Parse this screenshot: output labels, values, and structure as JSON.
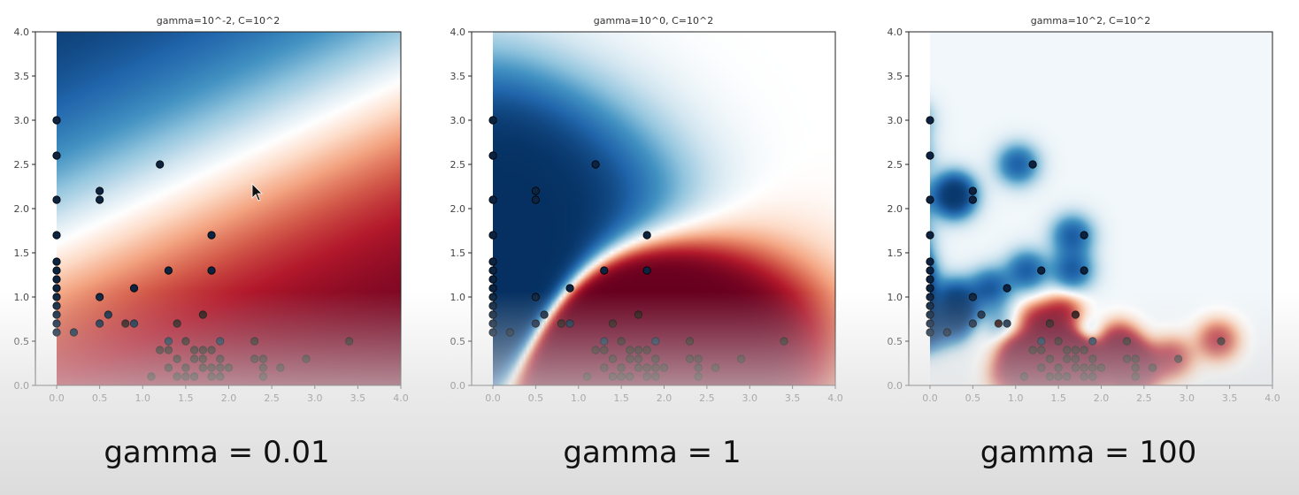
{
  "chart_data": [
    {
      "type": "scatter",
      "title": "gamma=10^-2, C=10^2",
      "gamma": 0.01,
      "C": 100,
      "xlim": [
        0,
        4
      ],
      "ylim": [
        0,
        4
      ],
      "xticks": [
        "0.0",
        "0.5",
        "1.0",
        "1.5",
        "2.0",
        "2.5",
        "3.0",
        "3.5",
        "4.0"
      ],
      "yticks": [
        "0.0",
        "0.5",
        "1.0",
        "1.5",
        "2.0",
        "2.5",
        "3.0",
        "3.5",
        "4.0"
      ],
      "background": "decision-function heatmap (RdBu)",
      "points_label": "shared"
    },
    {
      "type": "scatter",
      "title": "gamma=10^0, C=10^2",
      "gamma": 1,
      "C": 100,
      "xlim": [
        0,
        4
      ],
      "ylim": [
        0,
        4
      ],
      "xticks": [
        "0.0",
        "0.5",
        "1.0",
        "1.5",
        "2.0",
        "2.5",
        "3.0",
        "3.5",
        "4.0"
      ],
      "yticks": [
        "0.0",
        "0.5",
        "1.0",
        "1.5",
        "2.0",
        "2.5",
        "3.0",
        "3.5",
        "4.0"
      ],
      "background": "decision-function heatmap (RdBu)",
      "points_label": "shared"
    },
    {
      "type": "scatter",
      "title": "gamma=10^2, C=10^2",
      "gamma": 100,
      "C": 100,
      "xlim": [
        0,
        4
      ],
      "ylim": [
        0,
        4
      ],
      "xticks": [
        "0.0",
        "0.5",
        "1.0",
        "1.5",
        "2.0",
        "2.5",
        "3.0",
        "3.5",
        "4.0"
      ],
      "yticks": [
        "0.0",
        "0.5",
        "1.0",
        "1.5",
        "2.0",
        "2.5",
        "3.0",
        "3.5",
        "4.0"
      ],
      "background": "decision-function heatmap (RdBu)",
      "points_label": "shared"
    }
  ],
  "points": {
    "blue_class": [
      [
        0,
        3.0
      ],
      [
        0,
        2.6
      ],
      [
        0,
        2.1
      ],
      [
        0,
        1.7
      ],
      [
        0,
        1.4
      ],
      [
        0,
        1.3
      ],
      [
        0,
        1.2
      ],
      [
        0,
        1.1
      ],
      [
        0,
        1.0
      ],
      [
        0,
        0.9
      ],
      [
        0,
        0.8
      ],
      [
        0,
        0.7
      ],
      [
        0,
        0.6
      ],
      [
        0.2,
        0.6
      ],
      [
        0.5,
        2.2
      ],
      [
        0.5,
        2.1
      ],
      [
        0.5,
        1.0
      ],
      [
        0.5,
        0.7
      ],
      [
        0.6,
        0.8
      ],
      [
        0.9,
        1.1
      ],
      [
        0.9,
        0.7
      ],
      [
        1.2,
        2.5
      ],
      [
        1.3,
        1.3
      ],
      [
        1.3,
        0.5
      ],
      [
        1.8,
        1.7
      ],
      [
        1.8,
        1.3
      ],
      [
        1.9,
        0.5
      ]
    ],
    "red_class": [
      [
        0.8,
        0.7
      ],
      [
        1.1,
        0.1
      ],
      [
        1.2,
        0.4
      ],
      [
        1.3,
        0.4
      ],
      [
        1.3,
        0.2
      ],
      [
        1.4,
        0.7
      ],
      [
        1.4,
        0.3
      ],
      [
        1.4,
        0.1
      ],
      [
        1.5,
        0.5
      ],
      [
        1.5,
        0.2
      ],
      [
        1.5,
        0.1
      ],
      [
        1.6,
        0.4
      ],
      [
        1.6,
        0.3
      ],
      [
        1.6,
        0.1
      ],
      [
        1.7,
        0.8
      ],
      [
        1.7,
        0.4
      ],
      [
        1.7,
        0.3
      ],
      [
        1.7,
        0.2
      ],
      [
        1.8,
        0.4
      ],
      [
        1.8,
        0.1
      ],
      [
        1.8,
        0.2
      ],
      [
        1.9,
        0.3
      ],
      [
        1.9,
        0.2
      ],
      [
        1.9,
        0.1
      ],
      [
        2.0,
        0.2
      ],
      [
        2.3,
        0.5
      ],
      [
        2.3,
        0.3
      ],
      [
        2.4,
        0.3
      ],
      [
        2.4,
        0.2
      ],
      [
        2.4,
        0.1
      ],
      [
        2.6,
        0.2
      ],
      [
        2.9,
        0.3
      ],
      [
        3.4,
        0.5
      ]
    ]
  },
  "colors": {
    "blue_dark": "#053061",
    "red_dark": "#67001f",
    "point_fill": "#0b2341",
    "point_stroke": "#000000"
  },
  "captions": [
    "gamma = 0.01",
    "gamma = 1",
    "gamma = 100"
  ]
}
